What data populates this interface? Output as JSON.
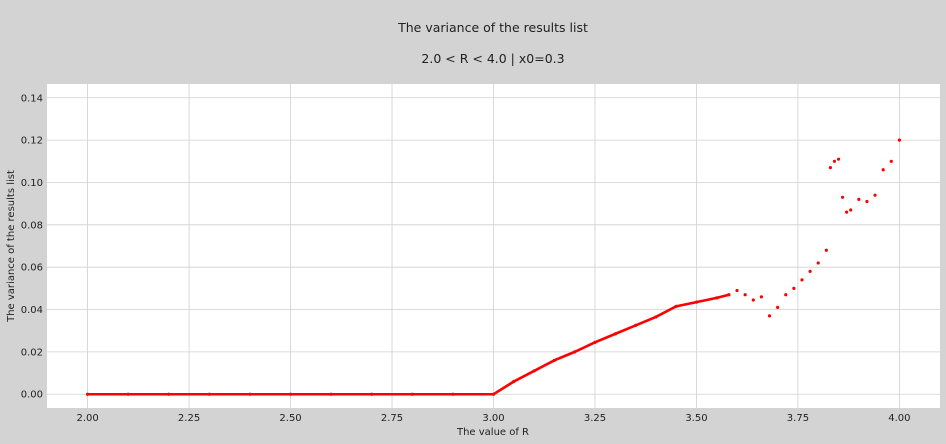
{
  "chart_data": {
    "type": "scatter",
    "title": "The variance of the results list",
    "subtitle": "2.0 < R < 4.0  |  x0=0.3",
    "xlabel": "The value of R",
    "ylabel": "The variance of the results list",
    "xlim": [
      1.9,
      4.1
    ],
    "ylim": [
      -0.0065,
      0.1465
    ],
    "xticks": [
      2.0,
      2.25,
      2.5,
      2.75,
      3.0,
      3.25,
      3.5,
      3.75,
      4.0
    ],
    "xtick_labels": [
      "2.00",
      "2.25",
      "2.50",
      "2.75",
      "3.00",
      "3.25",
      "3.50",
      "3.75",
      "4.00"
    ],
    "yticks": [
      0.0,
      0.02,
      0.04,
      0.06,
      0.08,
      0.1,
      0.12,
      0.14
    ],
    "ytick_labels": [
      "0.00",
      "0.02",
      "0.04",
      "0.06",
      "0.08",
      "0.10",
      "0.12",
      "0.14"
    ],
    "grid": true,
    "colors": {
      "marker": "#ff0000",
      "plot_bg": "#ffffff",
      "figure_bg": "#d3d3d3",
      "grid": "#d0d0d0"
    },
    "series": [
      {
        "x": [
          2.0,
          2.1,
          2.2,
          2.3,
          2.4,
          2.5,
          2.6,
          2.7,
          2.8,
          2.9,
          3.0,
          3.05,
          3.1,
          3.15,
          3.2,
          3.25,
          3.3,
          3.35,
          3.4,
          3.45,
          3.5,
          3.55,
          3.58,
          3.6,
          3.62,
          3.64,
          3.66,
          3.68,
          3.7,
          3.72,
          3.74,
          3.76,
          3.78,
          3.8,
          3.82,
          3.83,
          3.84,
          3.85,
          3.86,
          3.87,
          3.88,
          3.9,
          3.92,
          3.94,
          3.96,
          3.98,
          4.0
        ],
        "y": [
          0.0,
          0.0,
          0.0,
          0.0,
          0.0,
          0.0,
          0.0,
          0.0,
          0.0,
          0.0,
          0.0,
          0.006,
          0.011,
          0.016,
          0.02,
          0.0245,
          0.0285,
          0.0325,
          0.0365,
          0.0415,
          0.0435,
          0.0455,
          0.047,
          0.049,
          0.047,
          0.0445,
          0.046,
          0.037,
          0.041,
          0.047,
          0.05,
          0.054,
          0.058,
          0.062,
          0.068,
          0.107,
          0.11,
          0.111,
          0.093,
          0.086,
          0.087,
          0.092,
          0.091,
          0.094,
          0.106,
          0.11,
          0.12
        ]
      }
    ]
  }
}
